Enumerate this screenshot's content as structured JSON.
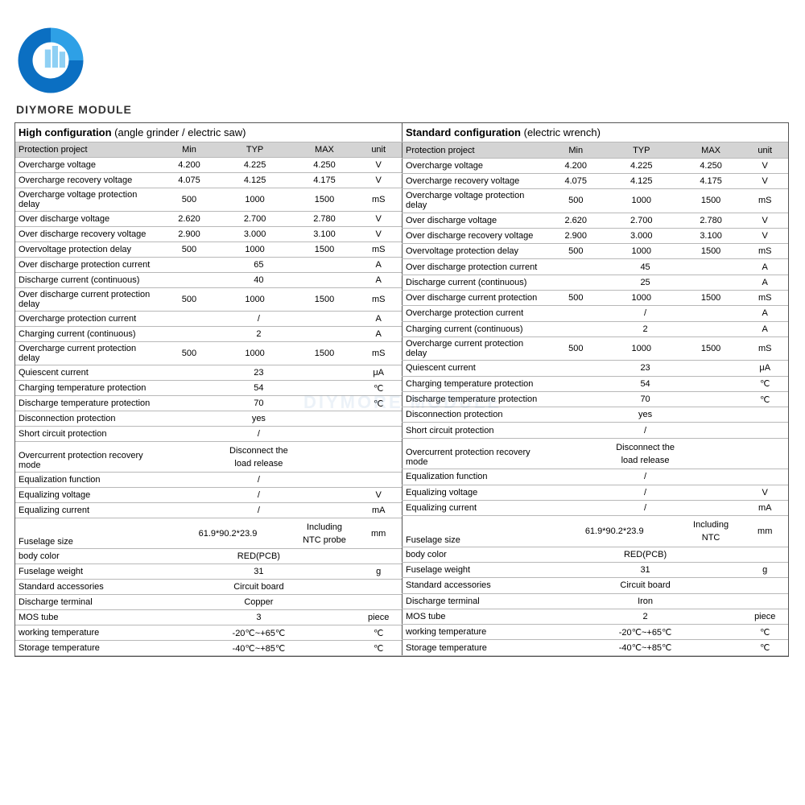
{
  "brand": "DIYMORE MODULE",
  "watermark": "DIYMORE MODULE",
  "logo": {
    "outer_color": "#0b6fc2",
    "inner_color": "#2ea0e6",
    "accent_color": "#8fd0f4"
  },
  "columns": [
    "Protection project",
    "Min",
    "TYP",
    "MAX",
    "unit"
  ],
  "tables": [
    {
      "title_bold": "High configuration",
      "title_note": "(angle grinder / electric saw)",
      "rows": [
        {
          "label": "Overcharge voltage",
          "min": "4.200",
          "typ": "4.225",
          "max": "4.250",
          "unit": "V"
        },
        {
          "label": "Overcharge recovery voltage",
          "min": "4.075",
          "typ": "4.125",
          "max": "4.175",
          "unit": "V"
        },
        {
          "label": "Overcharge voltage protection delay",
          "min": "500",
          "typ": "1000",
          "max": "1500",
          "unit": "mS"
        },
        {
          "label": "Over discharge voltage",
          "min": "2.620",
          "typ": "2.700",
          "max": "2.780",
          "unit": "V"
        },
        {
          "label": "Over discharge recovery voltage",
          "min": "2.900",
          "typ": "3.000",
          "max": "3.100",
          "unit": "V"
        },
        {
          "label": "Overvoltage protection delay",
          "min": "500",
          "typ": "1000",
          "max": "1500",
          "unit": "mS"
        },
        {
          "label": "Over discharge protection current",
          "min": "",
          "typ": "65",
          "max": "",
          "unit": "A"
        },
        {
          "label": "Discharge current (continuous)",
          "min": "",
          "typ": "40",
          "max": "",
          "unit": "A"
        },
        {
          "label": "Over discharge current protection delay",
          "min": "500",
          "typ": "1000",
          "max": "1500",
          "unit": "mS"
        },
        {
          "label": "Overcharge protection current",
          "min": "",
          "typ": "/",
          "max": "",
          "unit": "A"
        },
        {
          "label": "Charging current (continuous)",
          "min": "",
          "typ": "2",
          "max": "",
          "unit": "A"
        },
        {
          "label": "Overcharge current protection delay",
          "min": "500",
          "typ": "1000",
          "max": "1500",
          "unit": "mS"
        },
        {
          "label": "Quiescent current",
          "min": "",
          "typ": "23",
          "max": "",
          "unit": "μA"
        },
        {
          "label": "Charging temperature protection",
          "min": "",
          "typ": "54",
          "max": "",
          "unit": "℃"
        },
        {
          "label": "Discharge temperature protection",
          "min": "",
          "typ": "70",
          "max": "",
          "unit": "℃"
        },
        {
          "label": "Disconnection protection",
          "min": "",
          "typ": "yes",
          "max": "",
          "unit": ""
        },
        {
          "label": "Short circuit protection",
          "min": "",
          "typ": "/",
          "max": "",
          "unit": ""
        },
        {
          "label": "Overcurrent protection recovery mode",
          "min": "",
          "typ": "Disconnect the load release",
          "max": "",
          "unit": "",
          "tall": true
        },
        {
          "label": "Equalization function",
          "min": "",
          "typ": "/",
          "max": "",
          "unit": ""
        },
        {
          "label": "Equalizing voltage",
          "min": "",
          "typ": "/",
          "max": "",
          "unit": "V"
        },
        {
          "label": "Equalizing current",
          "min": "",
          "typ": "/",
          "max": "",
          "unit": "mA"
        },
        {
          "label": "Fuselage size",
          "min": "",
          "typ": "61.9*90.2*23.9",
          "max": "Including NTC probe",
          "unit": "mm",
          "tall": true
        },
        {
          "label": "body color",
          "min": "",
          "typ": "RED(PCB)",
          "max": "",
          "unit": ""
        },
        {
          "label": "Fuselage weight",
          "min": "",
          "typ": "31",
          "max": "",
          "unit": "g"
        },
        {
          "label": "Standard accessories",
          "min": "",
          "typ": "Circuit board",
          "max": "",
          "unit": ""
        },
        {
          "label": "Discharge terminal",
          "min": "",
          "typ": "Copper",
          "max": "",
          "unit": ""
        },
        {
          "label": "MOS tube",
          "min": "",
          "typ": "3",
          "max": "",
          "unit": "piece"
        },
        {
          "label": "working temperature",
          "min": "",
          "typ": "-20℃~+65℃",
          "max": "",
          "unit": "℃"
        },
        {
          "label": "Storage temperature",
          "min": "",
          "typ": "-40℃~+85℃",
          "max": "",
          "unit": "℃"
        }
      ]
    },
    {
      "title_bold": "Standard configuration",
      "title_note": "(electric wrench)",
      "rows": [
        {
          "label": "Overcharge voltage",
          "min": "4.200",
          "typ": "4.225",
          "max": "4.250",
          "unit": "V"
        },
        {
          "label": "Overcharge recovery voltage",
          "min": "4.075",
          "typ": "4.125",
          "max": "4.175",
          "unit": "V"
        },
        {
          "label": "Overcharge voltage protection delay",
          "min": "500",
          "typ": "1000",
          "max": "1500",
          "unit": "mS"
        },
        {
          "label": "Over discharge voltage",
          "min": "2.620",
          "typ": "2.700",
          "max": "2.780",
          "unit": "V"
        },
        {
          "label": "Over discharge recovery voltage",
          "min": "2.900",
          "typ": "3.000",
          "max": "3.100",
          "unit": "V"
        },
        {
          "label": "Overvoltage protection delay",
          "min": "500",
          "typ": "1000",
          "max": "1500",
          "unit": "mS"
        },
        {
          "label": "Over discharge protection current",
          "min": "",
          "typ": "45",
          "max": "",
          "unit": "A"
        },
        {
          "label": "Discharge current (continuous)",
          "min": "",
          "typ": "25",
          "max": "",
          "unit": "A"
        },
        {
          "label": "Over discharge current protection",
          "min": "500",
          "typ": "1000",
          "max": "1500",
          "unit": "mS"
        },
        {
          "label": "Overcharge protection current",
          "min": "",
          "typ": "/",
          "max": "",
          "unit": "A"
        },
        {
          "label": "Charging current (continuous)",
          "min": "",
          "typ": "2",
          "max": "",
          "unit": "A"
        },
        {
          "label": "Overcharge current protection delay",
          "min": "500",
          "typ": "1000",
          "max": "1500",
          "unit": "mS"
        },
        {
          "label": "Quiescent current",
          "min": "",
          "typ": "23",
          "max": "",
          "unit": "μA"
        },
        {
          "label": "Charging temperature protection",
          "min": "",
          "typ": "54",
          "max": "",
          "unit": "℃"
        },
        {
          "label": "Discharge temperature protection",
          "min": "",
          "typ": "70",
          "max": "",
          "unit": "℃"
        },
        {
          "label": "Disconnection protection",
          "min": "",
          "typ": "yes",
          "max": "",
          "unit": ""
        },
        {
          "label": "Short circuit protection",
          "min": "",
          "typ": "/",
          "max": "",
          "unit": ""
        },
        {
          "label": "Overcurrent protection recovery mode",
          "min": "",
          "typ": "Disconnect the load release",
          "max": "",
          "unit": "",
          "tall": true
        },
        {
          "label": "Equalization function",
          "min": "",
          "typ": "/",
          "max": "",
          "unit": ""
        },
        {
          "label": "Equalizing voltage",
          "min": "",
          "typ": "/",
          "max": "",
          "unit": "V"
        },
        {
          "label": "Equalizing current",
          "min": "",
          "typ": "/",
          "max": "",
          "unit": "mA"
        },
        {
          "label": "Fuselage size",
          "min": "",
          "typ": "61.9*90.2*23.9",
          "max": "Including NTC",
          "unit": "mm",
          "tall": true
        },
        {
          "label": "body color",
          "min": "",
          "typ": "RED(PCB)",
          "max": "",
          "unit": ""
        },
        {
          "label": "Fuselage weight",
          "min": "",
          "typ": "31",
          "max": "",
          "unit": "g"
        },
        {
          "label": "Standard accessories",
          "min": "",
          "typ": "Circuit board",
          "max": "",
          "unit": ""
        },
        {
          "label": "Discharge terminal",
          "min": "",
          "typ": "Iron",
          "max": "",
          "unit": ""
        },
        {
          "label": "MOS tube",
          "min": "",
          "typ": "2",
          "max": "",
          "unit": "piece"
        },
        {
          "label": "working temperature",
          "min": "",
          "typ": "-20℃~+65℃",
          "max": "",
          "unit": "℃"
        },
        {
          "label": "Storage temperature",
          "min": "",
          "typ": "-40℃~+85℃",
          "max": "",
          "unit": "℃"
        }
      ]
    }
  ],
  "style": {
    "header_bg": "#d4d4d4",
    "border_color": "#555555",
    "row_border": "#b8b8b8",
    "font_size_body": 11,
    "font_size_title": 13
  }
}
